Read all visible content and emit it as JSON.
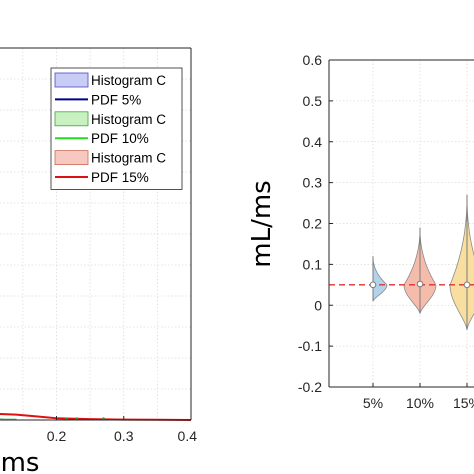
{
  "chart_data": [
    {
      "type": "area",
      "xlabel": "ms",
      "xlim": [
        0,
        0.4
      ],
      "x_ticks": [
        "0.2",
        "0.3",
        "0.4"
      ],
      "grid": true,
      "legend_position": "top-right",
      "legend": [
        {
          "label": "Histogram C",
          "kind": "patch",
          "color": "#c9cdf5",
          "edge": "#4a4ac8"
        },
        {
          "label": "PDF 5%",
          "kind": "line",
          "color": "#00008b"
        },
        {
          "label": "Histogram C",
          "kind": "patch",
          "color": "#c8f0c0",
          "edge": "#3aa63a"
        },
        {
          "label": "PDF 10%",
          "kind": "line",
          "color": "#22dd22"
        },
        {
          "label": "Histogram C",
          "kind": "patch",
          "color": "#f6c8c0",
          "edge": "#c86a5a"
        },
        {
          "label": "PDF 15%",
          "kind": "line",
          "color": "#dd1111"
        }
      ],
      "series": [
        {
          "name": "PDF 15%",
          "color": "#dd1111",
          "x": [
            0.14,
            0.17,
            0.2,
            0.25,
            0.3,
            0.35,
            0.4
          ],
          "y": [
            0.006,
            0.004,
            0.002,
            0.001,
            0.0005,
            0.0002,
            0.0
          ]
        }
      ]
    },
    {
      "type": "violin",
      "ylabel": "mL/ms",
      "ylim": [
        -0.2,
        0.6
      ],
      "y_ticks": [
        "-0.2",
        "-0.1",
        "0",
        "0.1",
        "0.2",
        "0.3",
        "0.4",
        "0.5",
        "0.6"
      ],
      "categories": [
        "5%",
        "10%",
        "15%"
      ],
      "grid": true,
      "reference_line": {
        "y": 0.05,
        "color": "#e03030",
        "style": "dashed"
      },
      "series": [
        {
          "category": "5%",
          "median": 0.05,
          "min": 0.01,
          "max": 0.12,
          "peak": 0.05,
          "color": "#a6cbe9"
        },
        {
          "category": "10%",
          "median": 0.052,
          "min": -0.02,
          "max": 0.19,
          "peak": 0.05,
          "color": "#f4b09c"
        },
        {
          "category": "15%",
          "median": 0.05,
          "min": -0.06,
          "max": 0.27,
          "peak": 0.05,
          "color": "#f7d98f"
        }
      ]
    }
  ]
}
